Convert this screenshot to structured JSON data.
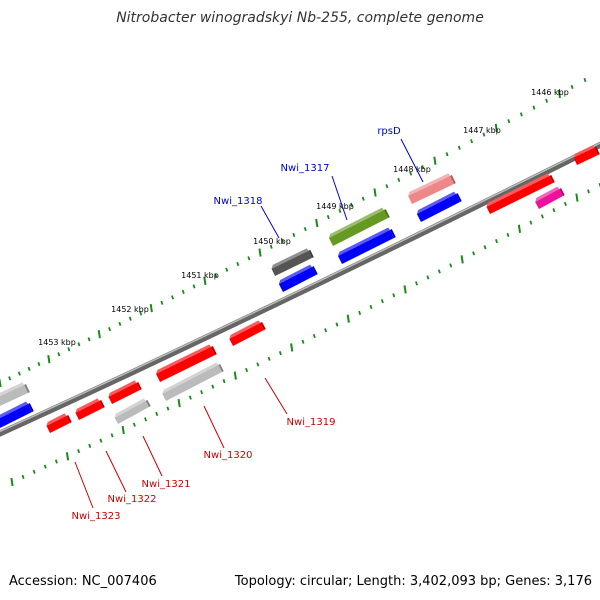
{
  "title": "Nitrobacter winogradskyi Nb-255, complete genome",
  "footer": {
    "accession": "Accession: NC_007406",
    "summary": "Topology: circular; Length: 3,402,093 bp; Genes: 3,176"
  },
  "kbp_labels": [
    "1446 kbp",
    "1447 kbp",
    "1448 kbp",
    "1449 kbp",
    "1450 kbp",
    "1451 kbp",
    "1452 kbp",
    "1453 kbp"
  ],
  "colors": {
    "backbone": "#808080",
    "tick": "#1a8a1a",
    "forward_label": "#0000cc",
    "reverse_label": "#cc0000",
    "red": "#ff0000",
    "blue": "#0000ff",
    "grey": "#bbbbbb",
    "dark_grey": "#555555",
    "olive": "#669922",
    "pink": "#ee8888",
    "magenta": "#ee1199"
  },
  "forward_gene_labels": [
    "Nwi_1318",
    "Nwi_1317",
    "rpsD"
  ],
  "reverse_gene_labels": [
    "Nwi_1319",
    "Nwi_1320",
    "Nwi_1321",
    "Nwi_1322",
    "Nwi_1323"
  ]
}
